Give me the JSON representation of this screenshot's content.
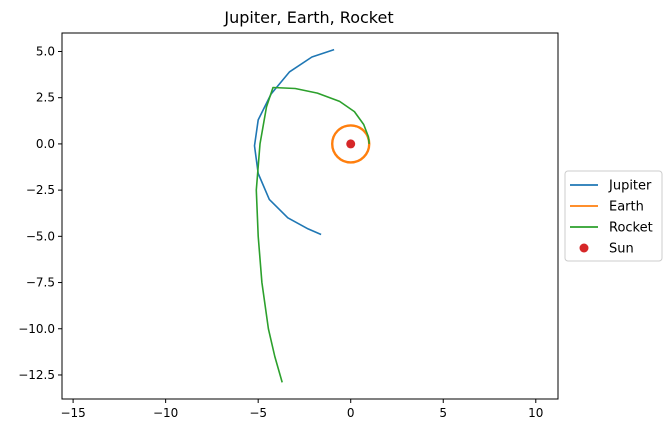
{
  "chart_data": {
    "type": "line",
    "title": "Jupiter, Earth, Rocket",
    "xlabel": "",
    "ylabel": "",
    "xlim": [
      -15.6,
      11.2
    ],
    "ylim": [
      -13.8,
      6.0
    ],
    "xticks": [
      -15,
      -10,
      -5,
      0,
      5,
      10
    ],
    "xtick_labels": [
      "−15",
      "−10",
      "−5",
      "0",
      "5",
      "10"
    ],
    "yticks": [
      5.0,
      2.5,
      0.0,
      -2.5,
      -5.0,
      -7.5,
      -10.0,
      -12.5
    ],
    "ytick_labels": [
      "5.0",
      "2.5",
      "0.0",
      "−2.5",
      "−5.0",
      "−7.5",
      "−10.0",
      "−12.5"
    ],
    "grid": false,
    "legend_position": "center-right-outside",
    "colors": {
      "jupiter": "#1f77b4",
      "earth": "#ff7f0e",
      "rocket": "#2ca02c",
      "sun": "#d62728"
    },
    "series": [
      {
        "name": "Jupiter",
        "kind": "line",
        "color": "#1f77b4",
        "points": [
          [
            -0.9,
            5.1
          ],
          [
            -2.1,
            4.7
          ],
          [
            -3.3,
            3.9
          ],
          [
            -4.3,
            2.7
          ],
          [
            -5.0,
            1.3
          ],
          [
            -5.2,
            -0.1
          ],
          [
            -5.0,
            -1.6
          ],
          [
            -4.4,
            -3.0
          ],
          [
            -3.4,
            -4.0
          ],
          [
            -2.3,
            -4.6
          ],
          [
            -1.6,
            -4.9
          ]
        ]
      },
      {
        "name": "Earth",
        "kind": "circle",
        "color": "#ff7f0e",
        "center": [
          0,
          0
        ],
        "radius": 1.0
      },
      {
        "name": "Rocket",
        "kind": "line",
        "color": "#2ca02c",
        "points": [
          [
            1.0,
            0.0
          ],
          [
            0.95,
            0.4
          ],
          [
            0.7,
            1.05
          ],
          [
            0.2,
            1.75
          ],
          [
            -0.6,
            2.3
          ],
          [
            -1.8,
            2.75
          ],
          [
            -3.0,
            3.0
          ],
          [
            -4.2,
            3.05
          ],
          [
            -4.55,
            2.0
          ],
          [
            -4.9,
            0.0
          ],
          [
            -5.1,
            -2.5
          ],
          [
            -5.0,
            -5.0
          ],
          [
            -4.8,
            -7.5
          ],
          [
            -4.45,
            -10.0
          ],
          [
            -4.1,
            -11.5
          ],
          [
            -3.7,
            -12.9
          ]
        ]
      },
      {
        "name": "Sun",
        "kind": "point",
        "color": "#d62728",
        "x": 0,
        "y": 0
      }
    ]
  }
}
